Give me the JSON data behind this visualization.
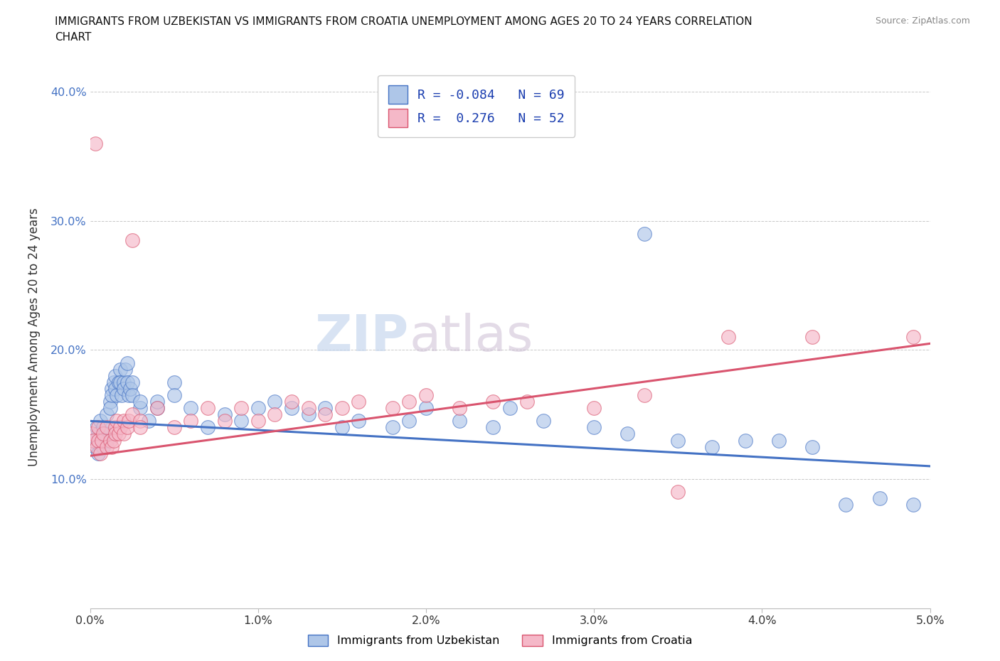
{
  "title_line1": "IMMIGRANTS FROM UZBEKISTAN VS IMMIGRANTS FROM CROATIA UNEMPLOYMENT AMONG AGES 20 TO 24 YEARS CORRELATION",
  "title_line2": "CHART",
  "source_text": "Source: ZipAtlas.com",
  "ylabel": "Unemployment Among Ages 20 to 24 years",
  "xlim": [
    0.0,
    0.05
  ],
  "ylim": [
    0.0,
    0.42
  ],
  "xticks": [
    0.0,
    0.01,
    0.02,
    0.03,
    0.04,
    0.05
  ],
  "xticklabels": [
    "0.0%",
    "1.0%",
    "2.0%",
    "3.0%",
    "4.0%",
    "5.0%"
  ],
  "yticks": [
    0.1,
    0.2,
    0.3,
    0.4
  ],
  "yticklabels": [
    "10.0%",
    "20.0%",
    "30.0%",
    "40.0%"
  ],
  "uzbekistan_R": -0.084,
  "uzbekistan_N": 69,
  "croatia_R": 0.276,
  "croatia_N": 52,
  "uzbekistan_color": "#aec6e8",
  "croatia_color": "#f5b8c8",
  "uzbekistan_line_color": "#4472c4",
  "croatia_line_color": "#d9546e",
  "uzbekistan_scatter": [
    [
      0.0002,
      0.13
    ],
    [
      0.0003,
      0.125
    ],
    [
      0.0004,
      0.14
    ],
    [
      0.0005,
      0.135
    ],
    [
      0.0005,
      0.12
    ],
    [
      0.0006,
      0.145
    ],
    [
      0.0007,
      0.13
    ],
    [
      0.0008,
      0.125
    ],
    [
      0.0008,
      0.14
    ],
    [
      0.0009,
      0.135
    ],
    [
      0.001,
      0.15
    ],
    [
      0.001,
      0.13
    ],
    [
      0.0012,
      0.16
    ],
    [
      0.0012,
      0.155
    ],
    [
      0.0013,
      0.17
    ],
    [
      0.0013,
      0.165
    ],
    [
      0.0014,
      0.175
    ],
    [
      0.0015,
      0.18
    ],
    [
      0.0015,
      0.17
    ],
    [
      0.0016,
      0.165
    ],
    [
      0.0017,
      0.175
    ],
    [
      0.0018,
      0.185
    ],
    [
      0.0018,
      0.175
    ],
    [
      0.0019,
      0.165
    ],
    [
      0.002,
      0.175
    ],
    [
      0.002,
      0.17
    ],
    [
      0.0021,
      0.185
    ],
    [
      0.0022,
      0.19
    ],
    [
      0.0022,
      0.175
    ],
    [
      0.0023,
      0.165
    ],
    [
      0.0024,
      0.17
    ],
    [
      0.0025,
      0.175
    ],
    [
      0.0025,
      0.165
    ],
    [
      0.003,
      0.155
    ],
    [
      0.003,
      0.16
    ],
    [
      0.0035,
      0.145
    ],
    [
      0.004,
      0.155
    ],
    [
      0.004,
      0.16
    ],
    [
      0.005,
      0.175
    ],
    [
      0.005,
      0.165
    ],
    [
      0.006,
      0.155
    ],
    [
      0.007,
      0.14
    ],
    [
      0.008,
      0.15
    ],
    [
      0.009,
      0.145
    ],
    [
      0.01,
      0.155
    ],
    [
      0.011,
      0.16
    ],
    [
      0.012,
      0.155
    ],
    [
      0.013,
      0.15
    ],
    [
      0.014,
      0.155
    ],
    [
      0.015,
      0.14
    ],
    [
      0.016,
      0.145
    ],
    [
      0.018,
      0.14
    ],
    [
      0.019,
      0.145
    ],
    [
      0.02,
      0.155
    ],
    [
      0.022,
      0.145
    ],
    [
      0.024,
      0.14
    ],
    [
      0.025,
      0.155
    ],
    [
      0.027,
      0.145
    ],
    [
      0.03,
      0.14
    ],
    [
      0.032,
      0.135
    ],
    [
      0.033,
      0.29
    ],
    [
      0.035,
      0.13
    ],
    [
      0.037,
      0.125
    ],
    [
      0.039,
      0.13
    ],
    [
      0.041,
      0.13
    ],
    [
      0.043,
      0.125
    ],
    [
      0.045,
      0.08
    ],
    [
      0.047,
      0.085
    ],
    [
      0.049,
      0.08
    ]
  ],
  "croatia_scatter": [
    [
      0.0001,
      0.135
    ],
    [
      0.0002,
      0.13
    ],
    [
      0.0003,
      0.36
    ],
    [
      0.0004,
      0.125
    ],
    [
      0.0005,
      0.14
    ],
    [
      0.0005,
      0.13
    ],
    [
      0.0006,
      0.12
    ],
    [
      0.0007,
      0.13
    ],
    [
      0.0008,
      0.135
    ],
    [
      0.001,
      0.14
    ],
    [
      0.001,
      0.125
    ],
    [
      0.0012,
      0.13
    ],
    [
      0.0013,
      0.125
    ],
    [
      0.0014,
      0.13
    ],
    [
      0.0015,
      0.14
    ],
    [
      0.0015,
      0.135
    ],
    [
      0.0016,
      0.145
    ],
    [
      0.0017,
      0.135
    ],
    [
      0.0018,
      0.14
    ],
    [
      0.002,
      0.145
    ],
    [
      0.002,
      0.135
    ],
    [
      0.0022,
      0.14
    ],
    [
      0.0023,
      0.145
    ],
    [
      0.0025,
      0.15
    ],
    [
      0.0025,
      0.285
    ],
    [
      0.003,
      0.145
    ],
    [
      0.003,
      0.14
    ],
    [
      0.004,
      0.155
    ],
    [
      0.005,
      0.14
    ],
    [
      0.006,
      0.145
    ],
    [
      0.007,
      0.155
    ],
    [
      0.008,
      0.145
    ],
    [
      0.009,
      0.155
    ],
    [
      0.01,
      0.145
    ],
    [
      0.011,
      0.15
    ],
    [
      0.012,
      0.16
    ],
    [
      0.013,
      0.155
    ],
    [
      0.014,
      0.15
    ],
    [
      0.015,
      0.155
    ],
    [
      0.016,
      0.16
    ],
    [
      0.018,
      0.155
    ],
    [
      0.019,
      0.16
    ],
    [
      0.02,
      0.165
    ],
    [
      0.022,
      0.155
    ],
    [
      0.024,
      0.16
    ],
    [
      0.026,
      0.16
    ],
    [
      0.03,
      0.155
    ],
    [
      0.033,
      0.165
    ],
    [
      0.035,
      0.09
    ],
    [
      0.038,
      0.21
    ],
    [
      0.043,
      0.21
    ],
    [
      0.049,
      0.21
    ]
  ],
  "watermark_text": "ZIP",
  "watermark_text2": "atlas",
  "background_color": "#ffffff",
  "grid_color": "#c8c8c8"
}
